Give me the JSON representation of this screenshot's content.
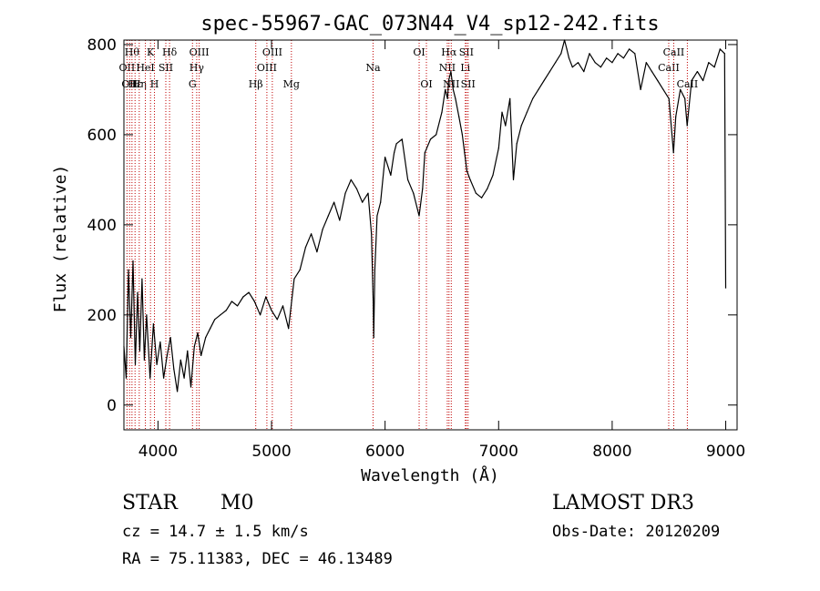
{
  "chart_data": {
    "type": "line",
    "title": "spec-55967-GAC_073N44_V4_sp12-242.fits",
    "xlabel": "Wavelength (Å)",
    "ylabel": "Flux (relative)",
    "xlim": [
      3700,
      9100
    ],
    "ylim": [
      -55,
      810
    ],
    "xticks": [
      4000,
      5000,
      6000,
      7000,
      8000,
      9000
    ],
    "yticks": [
      0,
      200,
      400,
      600,
      800
    ],
    "grid": false,
    "line_color": "#000000",
    "marker_color": "#c00000",
    "series": [
      {
        "x": [
          3700,
          3720,
          3740,
          3760,
          3780,
          3800,
          3820,
          3840,
          3860,
          3880,
          3900,
          3930,
          3960,
          3990,
          4020,
          4050,
          4080,
          4110,
          4140,
          4170,
          4200,
          4230,
          4260,
          4290,
          4320,
          4350,
          4380,
          4420,
          4460,
          4500,
          4550,
          4600,
          4650,
          4700,
          4750,
          4800,
          4850,
          4900,
          4950,
          5000,
          5050,
          5100,
          5150,
          5200,
          5250,
          5300,
          5350,
          5400,
          5450,
          5500,
          5550,
          5600,
          5650,
          5700,
          5750,
          5800,
          5850,
          5880,
          5895,
          5900,
          5910,
          5930,
          5960,
          6000,
          6050,
          6080,
          6100,
          6150,
          6200,
          6250,
          6300,
          6330,
          6350,
          6400,
          6450,
          6500,
          6530,
          6550,
          6560,
          6580,
          6600,
          6620,
          6650,
          6680,
          6700,
          6720,
          6750,
          6800,
          6850,
          6900,
          6950,
          7000,
          7030,
          7060,
          7100,
          7130,
          7160,
          7200,
          7250,
          7300,
          7350,
          7400,
          7450,
          7500,
          7550,
          7580,
          7600,
          7620,
          7650,
          7700,
          7750,
          7800,
          7850,
          7900,
          7950,
          8000,
          8050,
          8100,
          8150,
          8200,
          8250,
          8300,
          8350,
          8400,
          8450,
          8500,
          8540,
          8560,
          8600,
          8640,
          8660,
          8700,
          8750,
          8800,
          8850,
          8900,
          8950,
          8990,
          9000
        ],
        "y": [
          130,
          60,
          300,
          150,
          320,
          90,
          250,
          120,
          280,
          100,
          200,
          60,
          180,
          90,
          140,
          60,
          110,
          150,
          80,
          30,
          100,
          60,
          120,
          40,
          130,
          160,
          110,
          150,
          170,
          190,
          200,
          210,
          230,
          220,
          240,
          250,
          230,
          200,
          240,
          210,
          190,
          220,
          170,
          280,
          300,
          350,
          380,
          340,
          390,
          420,
          450,
          410,
          470,
          500,
          480,
          450,
          470,
          380,
          230,
          150,
          300,
          420,
          450,
          550,
          510,
          560,
          580,
          590,
          500,
          470,
          420,
          480,
          560,
          590,
          600,
          650,
          700,
          680,
          720,
          740,
          700,
          680,
          640,
          600,
          560,
          520,
          500,
          470,
          460,
          480,
          510,
          570,
          650,
          620,
          680,
          500,
          580,
          620,
          650,
          680,
          700,
          720,
          740,
          760,
          780,
          810,
          790,
          770,
          750,
          760,
          740,
          780,
          760,
          750,
          770,
          760,
          780,
          770,
          790,
          780,
          700,
          760,
          740,
          720,
          700,
          680,
          560,
          640,
          700,
          680,
          620,
          720,
          740,
          720,
          760,
          750,
          790,
          780,
          260
        ]
      }
    ],
    "line_markers": [
      {
        "wavelength": 3727,
        "label": "OII",
        "row": 2
      },
      {
        "wavelength": 3750,
        "label": "OII",
        "row": 3
      },
      {
        "wavelength": 3771,
        "label": "Hθ",
        "row": 1
      },
      {
        "wavelength": 3798,
        "label": "Hε",
        "row": 3
      },
      {
        "wavelength": 3835,
        "label": "Hη",
        "row": 3
      },
      {
        "wavelength": 3889,
        "label": "HeI",
        "row": 2
      },
      {
        "wavelength": 3934,
        "label": "K",
        "row": 1
      },
      {
        "wavelength": 3969,
        "label": "H",
        "row": 3
      },
      {
        "wavelength": 4069,
        "label": "SII",
        "row": 2
      },
      {
        "wavelength": 4102,
        "label": "Hδ",
        "row": 1
      },
      {
        "wavelength": 4304,
        "label": "G",
        "row": 3
      },
      {
        "wavelength": 4341,
        "label": "Hγ",
        "row": 2
      },
      {
        "wavelength": 4363,
        "label": "OIII",
        "row": 1
      },
      {
        "wavelength": 4861,
        "label": "Hβ",
        "row": 3
      },
      {
        "wavelength": 4959,
        "label": "OIII",
        "row": 2
      },
      {
        "wavelength": 5007,
        "label": "OIII",
        "row": 1
      },
      {
        "wavelength": 5175,
        "label": "Mg",
        "row": 3
      },
      {
        "wavelength": 5894,
        "label": "Na",
        "row": 2
      },
      {
        "wavelength": 6300,
        "label": "OI",
        "row": 1
      },
      {
        "wavelength": 6364,
        "label": "OI",
        "row": 3
      },
      {
        "wavelength": 6548,
        "label": "NII",
        "row": 2
      },
      {
        "wavelength": 6563,
        "label": "Hα",
        "row": 1
      },
      {
        "wavelength": 6583,
        "label": "NII",
        "row": 3
      },
      {
        "wavelength": 6707,
        "label": "Li",
        "row": 2
      },
      {
        "wavelength": 6716,
        "label": "SII",
        "row": 1
      },
      {
        "wavelength": 6731,
        "label": "SII",
        "row": 3
      },
      {
        "wavelength": 8498,
        "label": "CaII",
        "row": 2
      },
      {
        "wavelength": 8542,
        "label": "CaII",
        "row": 1
      },
      {
        "wavelength": 8662,
        "label": "CaII",
        "row": 3
      }
    ]
  },
  "info": {
    "class": "STAR",
    "subclass": "M0",
    "survey": "LAMOST DR3",
    "cz": "cz = 14.7 ± 1.5 km/s",
    "obs_date": "Obs-Date: 20120209",
    "radec": "RA =  75.11383, DEC =  46.13489"
  }
}
